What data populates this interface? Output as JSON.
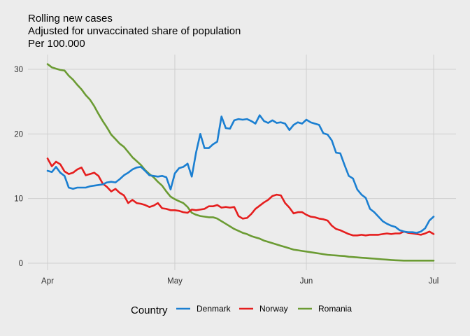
{
  "chart_data": {
    "type": "line",
    "title_lines": [
      "Rolling new cases",
      "Adjusted for unvaccinated share of population",
      "Per 100.000"
    ],
    "xlabel": "",
    "ylabel": "",
    "x_start_date": "2021-04-01",
    "xlim": [
      0,
      92
    ],
    "ylim": [
      0,
      31.5
    ],
    "yticks": [
      0,
      10,
      20,
      30
    ],
    "xticks": [
      {
        "label": "Apr",
        "day": 0
      },
      {
        "label": "May",
        "day": 30
      },
      {
        "label": "Jun",
        "day": 61
      },
      {
        "label": "Jul",
        "day": 91
      }
    ],
    "grid": true,
    "legend": {
      "title": "Country",
      "position": "bottom"
    },
    "series": [
      {
        "name": "Denmark",
        "color": "#1b7fd1",
        "values": [
          14.3,
          14.1,
          14.9,
          14.0,
          13.5,
          11.7,
          11.5,
          11.7,
          11.7,
          11.7,
          11.9,
          12.0,
          12.1,
          12.2,
          12.5,
          12.6,
          12.5,
          13.0,
          13.6,
          14.0,
          14.5,
          14.8,
          14.9,
          14.3,
          13.6,
          13.5,
          13.4,
          13.5,
          13.3,
          11.4,
          13.9,
          14.7,
          14.9,
          15.4,
          13.4,
          17.1,
          20.0,
          17.8,
          17.8,
          18.4,
          18.8,
          22.7,
          20.9,
          20.8,
          22.1,
          22.3,
          22.2,
          22.3,
          22.0,
          21.6,
          22.9,
          22.0,
          21.7,
          22.1,
          21.7,
          21.8,
          21.6,
          20.6,
          21.4,
          21.8,
          21.6,
          22.2,
          21.8,
          21.6,
          21.4,
          20.1,
          19.9,
          19.0,
          17.1,
          17.0,
          15.2,
          13.5,
          13.1,
          11.4,
          10.6,
          10.1,
          8.4,
          7.9,
          7.2,
          6.5,
          6.1,
          5.8,
          5.6,
          5.1,
          4.9,
          4.8,
          4.8,
          4.7,
          4.9,
          5.4,
          6.6,
          7.2
        ]
      },
      {
        "name": "Norway",
        "color": "#e51e1e",
        "values": [
          16.2,
          15.0,
          15.7,
          15.3,
          14.2,
          13.8,
          14.0,
          14.5,
          14.8,
          13.6,
          13.8,
          14.0,
          13.5,
          12.3,
          11.8,
          11.1,
          11.5,
          10.9,
          10.5,
          9.3,
          9.8,
          9.3,
          9.2,
          9.0,
          8.7,
          8.9,
          9.3,
          8.5,
          8.4,
          8.2,
          8.2,
          8.1,
          7.9,
          7.8,
          8.3,
          8.2,
          8.3,
          8.4,
          8.8,
          8.8,
          9.0,
          8.6,
          8.7,
          8.6,
          8.7,
          7.3,
          6.9,
          7.0,
          7.6,
          8.4,
          8.9,
          9.4,
          9.8,
          10.4,
          10.6,
          10.5,
          9.3,
          8.6,
          7.7,
          7.9,
          7.9,
          7.5,
          7.2,
          7.1,
          6.9,
          6.8,
          6.6,
          5.8,
          5.3,
          5.1,
          4.8,
          4.5,
          4.3,
          4.3,
          4.4,
          4.3,
          4.4,
          4.4,
          4.4,
          4.5,
          4.6,
          4.5,
          4.6,
          4.6,
          4.9,
          4.7,
          4.6,
          4.5,
          4.4,
          4.6,
          4.9,
          4.5
        ]
      },
      {
        "name": "Romania",
        "color": "#6b9b33",
        "values": [
          30.8,
          30.3,
          30.1,
          29.9,
          29.8,
          29.0,
          28.4,
          27.6,
          26.9,
          26.0,
          25.3,
          24.3,
          23.1,
          22.0,
          21.0,
          19.9,
          19.2,
          18.5,
          18.0,
          17.2,
          16.4,
          15.8,
          15.2,
          14.4,
          13.8,
          13.3,
          12.6,
          12.0,
          11.1,
          10.3,
          9.9,
          9.6,
          9.3,
          8.7,
          7.8,
          7.5,
          7.3,
          7.2,
          7.1,
          7.1,
          6.9,
          6.5,
          6.1,
          5.7,
          5.3,
          5.0,
          4.7,
          4.5,
          4.2,
          4.0,
          3.8,
          3.5,
          3.3,
          3.1,
          2.9,
          2.7,
          2.5,
          2.3,
          2.1,
          2.0,
          1.9,
          1.8,
          1.7,
          1.6,
          1.5,
          1.4,
          1.3,
          1.25,
          1.2,
          1.15,
          1.1,
          1.0,
          0.95,
          0.9,
          0.85,
          0.8,
          0.75,
          0.7,
          0.65,
          0.6,
          0.55,
          0.5,
          0.45,
          0.42,
          0.4,
          0.4,
          0.4,
          0.4,
          0.4,
          0.4,
          0.4,
          0.4
        ]
      }
    ]
  }
}
